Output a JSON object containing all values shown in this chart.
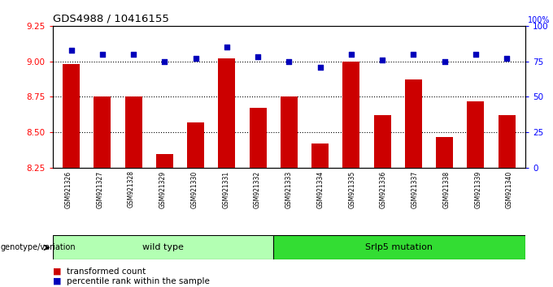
{
  "title": "GDS4988 / 10416155",
  "samples": [
    "GSM921326",
    "GSM921327",
    "GSM921328",
    "GSM921329",
    "GSM921330",
    "GSM921331",
    "GSM921332",
    "GSM921333",
    "GSM921334",
    "GSM921335",
    "GSM921336",
    "GSM921337",
    "GSM921338",
    "GSM921339",
    "GSM921340"
  ],
  "transformed_counts": [
    8.98,
    8.75,
    8.75,
    8.35,
    8.57,
    9.02,
    8.67,
    8.75,
    8.42,
    9.0,
    8.62,
    8.87,
    8.47,
    8.72,
    8.62
  ],
  "percentile_ranks": [
    83,
    80,
    80,
    75,
    77,
    85,
    78,
    75,
    71,
    80,
    76,
    80,
    75,
    80,
    77
  ],
  "ylim_left": [
    8.25,
    9.25
  ],
  "ylim_right": [
    0,
    100
  ],
  "yticks_left": [
    8.25,
    8.5,
    8.75,
    9.0,
    9.25
  ],
  "yticks_right": [
    0,
    25,
    50,
    75,
    100
  ],
  "bar_color": "#cc0000",
  "dot_color": "#0000bb",
  "grid_lines": [
    8.5,
    8.75,
    9.0
  ],
  "wild_type_count": 7,
  "mutation_count": 8,
  "wild_type_label": "wild type",
  "mutation_label": "Srlp5 mutation",
  "genotype_label": "genotype/variation",
  "legend_bar_label": "transformed count",
  "legend_dot_label": "percentile rank within the sample",
  "wild_type_color": "#b3ffb3",
  "mutation_color": "#33dd33",
  "xtick_bg_color": "#c8c8c8"
}
